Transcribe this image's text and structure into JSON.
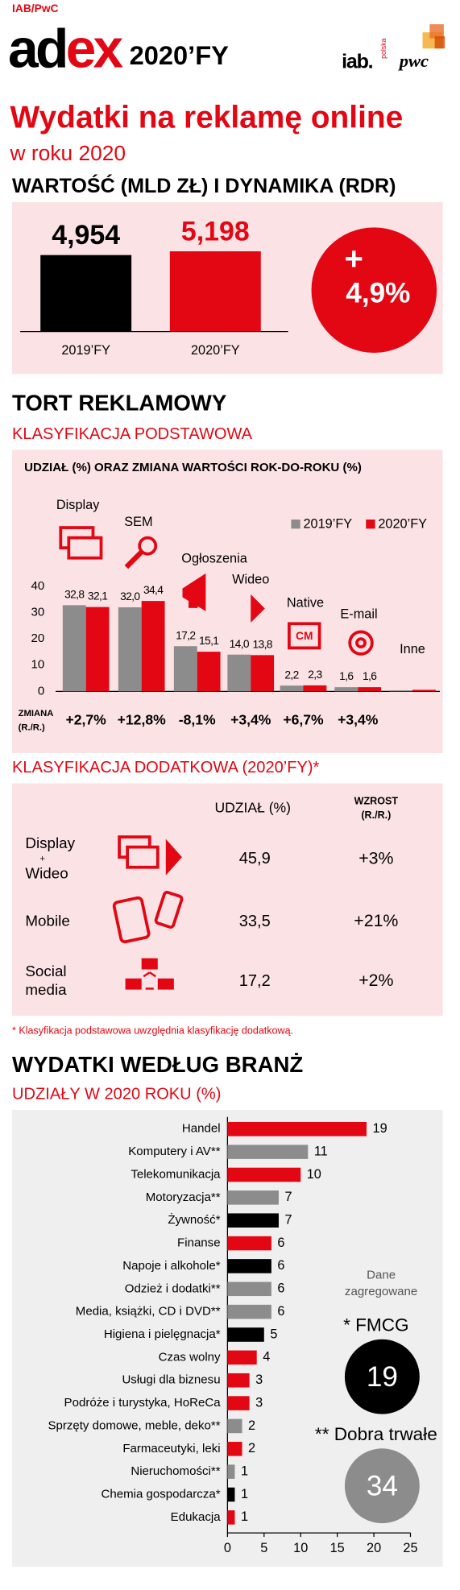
{
  "header": {
    "brand": "IAB/PwC",
    "logo": [
      "ad",
      "ex"
    ],
    "period": "2020’FY",
    "partners": [
      "iab.",
      "polska",
      "pwc"
    ],
    "title": "Wydatki na reklamę online",
    "subtitle": "w roku 2020"
  },
  "sections": [
    "WARTOŚĆ (MLD ZŁ) I DYNAMIKA (RDR)",
    "TORT REKLAMOWY",
    "KLASYFIKACJA PODSTAWOWA",
    "KLASYFIKACJA DODATKOWA (2020’FY)*",
    "WYDATKI WEDŁUG BRANŻ"
  ],
  "chart_data": [
    {
      "type": "bar",
      "categories": [
        "2019’FY",
        "2020’FY"
      ],
      "values": [
        4.954,
        5.198
      ],
      "value_labels": [
        "4,954",
        "5,198"
      ],
      "colors": [
        "#000000",
        "#e30613"
      ],
      "ylim": [
        0,
        5.5
      ],
      "change_sign": "+",
      "change": 4.9,
      "change_label": "4,9%"
    },
    {
      "type": "bar",
      "title": "UDZIAŁ (%) ORAZ ZMIANA WARTOŚCI ROK-DO-ROKU (%)",
      "categories": [
        "Display",
        "SEM",
        "Ogłoszenia",
        "Wideo",
        "Native",
        "E-mail",
        "Inne"
      ],
      "series": [
        {
          "name": "2019’FY",
          "color": "#8c8c8c",
          "values": [
            32.8,
            32.0,
            17.2,
            14.0,
            2.2,
            1.6,
            0.4
          ],
          "value_labels": [
            "32,8",
            "32,0",
            "17,2",
            "14,0",
            "2,2",
            "1,6",
            null
          ]
        },
        {
          "name": "2020’FY",
          "color": "#e30613",
          "values": [
            32.1,
            34.4,
            15.1,
            13.8,
            2.3,
            1.6,
            0.6
          ],
          "value_labels": [
            "32,1",
            "34,4",
            "15,1",
            "13,8",
            "2,3",
            "1,6",
            null
          ]
        }
      ],
      "ylim": [
        0,
        40
      ],
      "yticks": [
        0,
        10,
        20,
        30,
        40
      ],
      "change_title": [
        "ZMIANA",
        "(R./R.)"
      ],
      "changes": [
        2.7,
        12.8,
        -8.1,
        3.4,
        6.7,
        3.4,
        null
      ],
      "change_labels": [
        "+2,7%",
        "+12,8%",
        "-8,1%",
        "+3,4%",
        "+6,7%",
        "+3,4%",
        null
      ]
    },
    {
      "type": "hbar",
      "title": "UDZIAŁY W 2020 ROKU (%)",
      "categories": [
        "Handel",
        "Komputery i AV**",
        "Telekomunikacja",
        "Motoryzacja**",
        "Żywność*",
        "Finanse",
        "Napoje i alkohole*",
        "Odzież i dodatki**",
        "Media, książki, CD i DVD**",
        "Higiena i pielęgnacja*",
        "Czas wolny",
        "Usługi dla biznesu",
        "Podróże i turystyka, HoReCa",
        "Sprzęty domowe, meble, deko**",
        "Farmaceutyki, leki",
        "Nieruchomości**",
        "Chemia gospodarcza*",
        "Edukacja"
      ],
      "values": [
        19,
        11,
        10,
        7,
        7,
        6,
        6,
        6,
        6,
        5,
        4,
        3,
        3,
        2,
        2,
        1,
        1,
        1
      ],
      "colors": [
        "#e30613",
        "#8c8c8c",
        "#e30613",
        "#8c8c8c",
        "#000000",
        "#e30613",
        "#000000",
        "#8c8c8c",
        "#8c8c8c",
        "#000000",
        "#e30613",
        "#e30613",
        "#e30613",
        "#8c8c8c",
        "#e30613",
        "#8c8c8c",
        "#000000",
        "#e30613"
      ],
      "xlim": [
        0,
        25
      ],
      "xticks": [
        0,
        5,
        10,
        15,
        20,
        25
      ]
    }
  ],
  "additional": {
    "columns": [
      [
        "UDZIAŁ (%)"
      ],
      [
        "WZROST",
        "(R./R.)"
      ]
    ],
    "rows": [
      {
        "label": [
          "Display",
          "+",
          "Wideo"
        ],
        "share": "45,9",
        "growth": "+3%"
      },
      {
        "label": [
          "Mobile"
        ],
        "share": "33,5",
        "growth": "+21%"
      },
      {
        "label": [
          "Social",
          "media"
        ],
        "share": "17,2",
        "growth": "+2%"
      }
    ],
    "footnote": "* Klasyfikacja podstawowa uwzględnia klasyfikację dodatkową."
  },
  "aggregates": {
    "title": [
      "Dane",
      "zagregowane"
    ],
    "items": [
      {
        "name": "* FMCG",
        "value": 19
      },
      {
        "name": "** Dobra trwałe",
        "value": 34
      }
    ]
  }
}
